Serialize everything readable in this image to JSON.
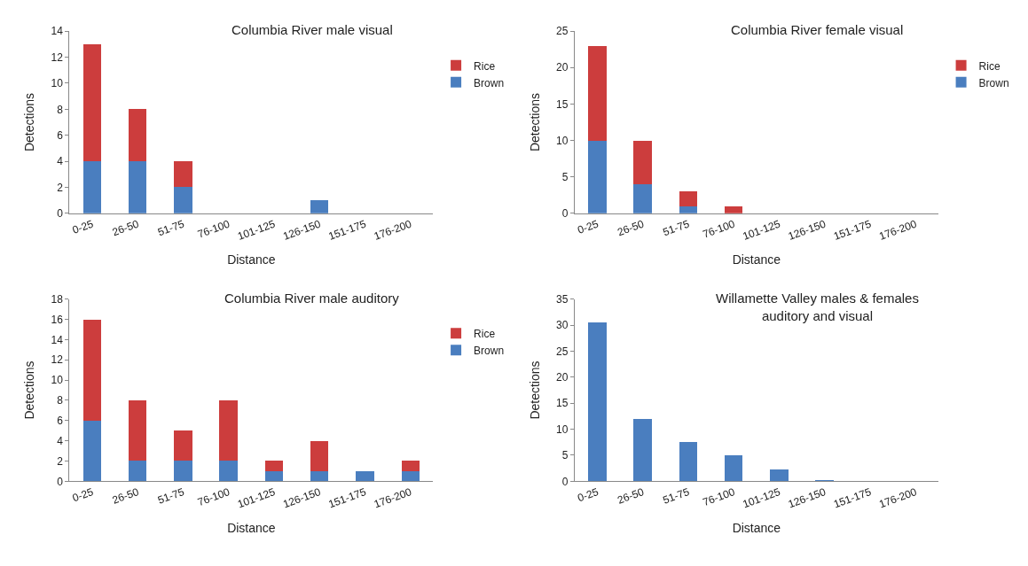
{
  "chart_data": [
    {
      "type": "bar",
      "title": "Columbia River male visual",
      "xlabel": "Distance",
      "ylabel": "Detections",
      "categories": [
        "0-25",
        "26-50",
        "51-75",
        "76-100",
        "101-125",
        "126-150",
        "151-175",
        "176-200"
      ],
      "stacked": true,
      "ylim": [
        0,
        14
      ],
      "yticks": [
        0,
        2,
        4,
        6,
        8,
        10,
        12,
        14
      ],
      "legend": "top right",
      "series": [
        {
          "name": "Brown",
          "color": "#4a7ebf",
          "values": [
            4,
            4,
            2,
            0,
            0,
            1,
            0,
            0
          ]
        },
        {
          "name": "Rice",
          "color": "#cc3d3d",
          "values": [
            9,
            4,
            2,
            0,
            0,
            0,
            0,
            0
          ]
        }
      ]
    },
    {
      "type": "bar",
      "title": "Columbia River female visual",
      "xlabel": "Distance",
      "ylabel": "Detections",
      "categories": [
        "0-25",
        "26-50",
        "51-75",
        "76-100",
        "101-125",
        "126-150",
        "151-175",
        "176-200"
      ],
      "stacked": true,
      "ylim": [
        0,
        25
      ],
      "yticks": [
        0,
        5,
        10,
        15,
        20,
        25
      ],
      "legend": "top right",
      "series": [
        {
          "name": "Brown",
          "color": "#4a7ebf",
          "values": [
            10,
            4,
            1,
            0,
            0,
            0,
            0,
            0
          ]
        },
        {
          "name": "Rice",
          "color": "#cc3d3d",
          "values": [
            13,
            6,
            2,
            1,
            0,
            0,
            0,
            0
          ]
        }
      ]
    },
    {
      "type": "bar",
      "title": "Columbia River male auditory",
      "xlabel": "Distance",
      "ylabel": "Detections",
      "categories": [
        "0-25",
        "26-50",
        "51-75",
        "76-100",
        "101-125",
        "126-150",
        "151-175",
        "176-200"
      ],
      "stacked": true,
      "ylim": [
        0,
        18
      ],
      "yticks": [
        0,
        2,
        4,
        6,
        8,
        10,
        12,
        14,
        16,
        18
      ],
      "legend": "top right",
      "series": [
        {
          "name": "Brown",
          "color": "#4a7ebf",
          "values": [
            6,
            2,
            2,
            2,
            1,
            1,
            1,
            1
          ]
        },
        {
          "name": "Rice",
          "color": "#cc3d3d",
          "values": [
            10,
            6,
            3,
            6,
            1,
            3,
            0,
            1
          ]
        }
      ]
    },
    {
      "type": "bar",
      "title": "Willamette Valley males & females\nauditory and visual",
      "xlabel": "Distance",
      "ylabel": "Detections",
      "categories": [
        "0-25",
        "26-50",
        "51-75",
        "76-100",
        "101-125",
        "126-150",
        "151-175",
        "176-200"
      ],
      "ylim": [
        0,
        35
      ],
      "yticks": [
        0,
        5,
        10,
        15,
        20,
        25,
        30,
        35
      ],
      "series": [
        {
          "color": "#4a7ebf",
          "values": [
            30.5,
            12,
            7.6,
            5,
            2.2,
            0.2,
            0,
            0
          ]
        }
      ]
    }
  ]
}
